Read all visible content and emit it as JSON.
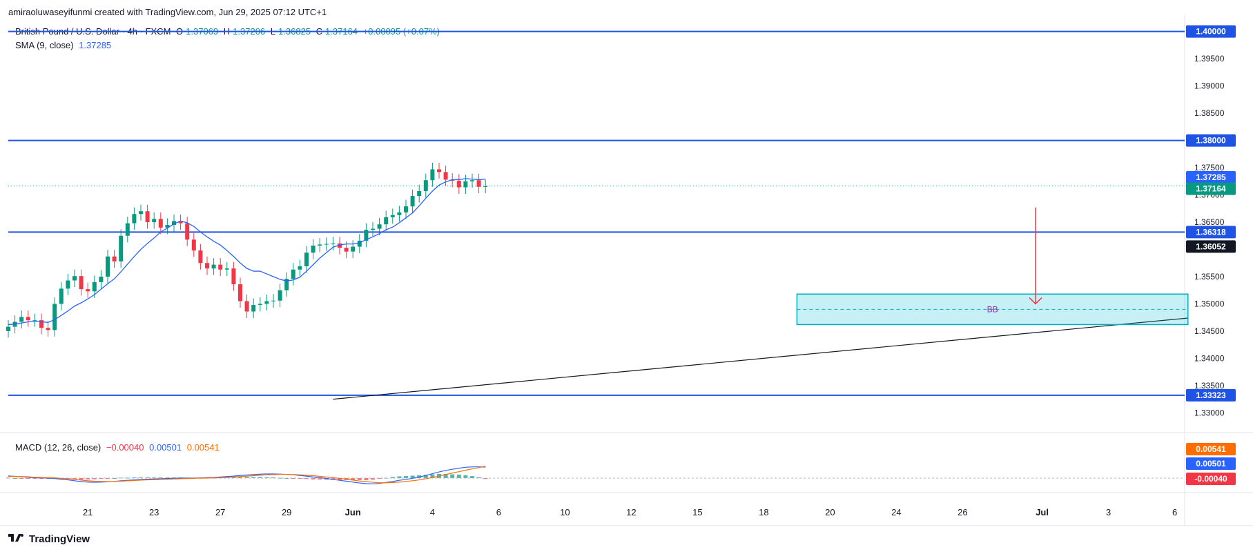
{
  "header": {
    "created_by": "amiraoluwaseyifunmi created with TradingView.com, Jun 29, 2025 07:12 UTC+1"
  },
  "legend": {
    "symbol": "British Pound / U.S. Dollar · 4h · FXCM",
    "open_label": "O",
    "open": "1.37069",
    "high_label": "H",
    "high": "1.37206",
    "low_label": "L",
    "low": "1.36825",
    "close_label": "C",
    "close": "1.37164",
    "change": "+0.00095 (+0.07%)",
    "sma_label": "SMA (9, close)",
    "sma_value": "1.37285",
    "macd_label": "MACD (12, 26, close)",
    "macd_hist": "−0.00040",
    "macd_line": "0.00501",
    "macd_signal": "0.00541"
  },
  "footer": {
    "brand": "TradingView"
  },
  "colors": {
    "up": "#089981",
    "down": "#f23645",
    "sma": "#2962ff",
    "level": "#1e53e5",
    "macd_line": "#2962ff",
    "signal": "#ff6d00"
  },
  "chart_data": {
    "type": "candlestick",
    "title": "British Pound / U.S. Dollar · 4h · FXCM",
    "ylim": [
      1.3265,
      1.403
    ],
    "y_ticks": [
      "1.40000",
      "1.39500",
      "1.39000",
      "1.38500",
      "1.38000",
      "1.37500",
      "1.37000",
      "1.36500",
      "1.36000",
      "1.35500",
      "1.35000",
      "1.34500",
      "1.34000",
      "1.33500",
      "1.33000"
    ],
    "x_ticks": [
      "21",
      "23",
      "27",
      "29",
      "Jun",
      "4",
      "6",
      "10",
      "12",
      "15",
      "18",
      "20",
      "24",
      "26",
      "Jul",
      "3",
      "6"
    ],
    "x_tick_bars": [
      12,
      22,
      32,
      42,
      52,
      64,
      74,
      84,
      94,
      104,
      114,
      124,
      134,
      144,
      156,
      166,
      176
    ],
    "horizontal_levels": [
      1.4,
      1.38,
      1.36318,
      1.33323
    ],
    "price_labels": {
      "level_1": "1.40000",
      "level_2": "1.38000",
      "level_3": "1.36318",
      "level_4": "1.33323",
      "sma": "1.37285",
      "last": "1.37164",
      "crosshair": "1.36052"
    },
    "zone": {
      "from_bar": 119,
      "to_bar": 178,
      "low": 1.3462,
      "high": 1.3518,
      "mid": 1.349,
      "label": "BB"
    },
    "trendline": {
      "start_bar": 49,
      "start_price": 1.3325,
      "end_bar": 178,
      "end_price": 1.3474
    },
    "arrow": {
      "bar": 155,
      "from_price": 1.3677,
      "to_price": 1.35
    },
    "closes": [
      1.3458,
      1.3467,
      1.3476,
      1.347,
      1.347,
      1.3456,
      1.3452,
      1.35,
      1.3528,
      1.3543,
      1.3551,
      1.3527,
      1.3523,
      1.354,
      1.355,
      1.3587,
      1.3578,
      1.3625,
      1.3648,
      1.3665,
      1.367,
      1.365,
      1.3656,
      1.364,
      1.3645,
      1.3652,
      1.3648,
      1.3618,
      1.3598,
      1.3575,
      1.3565,
      1.3572,
      1.3563,
      1.3565,
      1.3536,
      1.3505,
      1.3486,
      1.3498,
      1.35,
      1.3505,
      1.3506,
      1.3525,
      1.3546,
      1.3563,
      1.3569,
      1.3594,
      1.3607,
      1.3609,
      1.361,
      1.3611,
      1.3603,
      1.3596,
      1.3605,
      1.3616,
      1.3636,
      1.3638,
      1.3646,
      1.3659,
      1.3663,
      1.3668,
      1.3679,
      1.3698,
      1.3707,
      1.3727,
      1.3747,
      1.3742,
      1.3728,
      1.3726,
      1.3714,
      1.3725,
      1.3727,
      1.3715,
      1.3716
    ],
    "sma_values": [
      1.3462,
      1.3463,
      1.3465,
      1.3467,
      1.3468,
      1.3467,
      1.3466,
      1.3471,
      1.3479,
      1.3487,
      1.3496,
      1.3502,
      1.3509,
      1.3517,
      1.3527,
      1.3537,
      1.3546,
      1.3559,
      1.3573,
      1.3587,
      1.36,
      1.3611,
      1.3621,
      1.3632,
      1.3639,
      1.3647,
      1.3652,
      1.3649,
      1.3642,
      1.3632,
      1.3623,
      1.3615,
      1.3608,
      1.3598,
      1.3587,
      1.3575,
      1.3565,
      1.356,
      1.356,
      1.3555,
      1.355,
      1.3545,
      1.3542,
      1.3544,
      1.3549,
      1.356,
      1.3572,
      1.3584,
      1.3594,
      1.3604,
      1.3608,
      1.361,
      1.361,
      1.3612,
      1.3618,
      1.3623,
      1.3629,
      1.3636,
      1.3641,
      1.3649,
      1.3658,
      1.3667,
      1.368,
      1.3694,
      1.3707,
      1.3718,
      1.3724,
      1.3728,
      1.3728,
      1.373,
      1.3729,
      1.3728,
      1.3729
    ],
    "macd_values": [
      0.001,
      0.0008,
      0.0006,
      0.0004,
      0.0002,
      0.0001,
      0.0,
      -0.0002,
      -0.0005,
      -0.0008,
      -0.0012,
      -0.0016,
      -0.0018,
      -0.0019,
      -0.0018,
      -0.0017,
      -0.0015,
      -0.0012,
      -0.001,
      -0.0008,
      -0.0006,
      -0.0005,
      -0.0004,
      -0.0003,
      -0.0002,
      -0.0001,
      0.0,
      0.0,
      0.0,
      0.0001,
      0.0002,
      0.0003,
      0.0005,
      0.0007,
      0.0009,
      0.0012,
      0.0014,
      0.0016,
      0.0018,
      0.0019,
      0.0019,
      0.0018,
      0.0017,
      0.0015,
      0.0012,
      0.0009,
      0.0005,
      0.0002,
      -0.0002,
      -0.0006,
      -0.001,
      -0.0014,
      -0.0018,
      -0.0022,
      -0.0025,
      -0.0026,
      -0.0024,
      -0.002,
      -0.0015,
      -0.001,
      -0.0006,
      -0.0001,
      0.0005,
      0.0012,
      0.002,
      0.0028,
      0.0035,
      0.004,
      0.0045,
      0.0049,
      0.0051,
      0.0051,
      0.005
    ],
    "signal_values": [
      0.0008,
      0.0008,
      0.0007,
      0.0006,
      0.0004,
      0.0003,
      0.0002,
      0.0001,
      -0.0001,
      -0.0003,
      -0.0006,
      -0.0009,
      -0.0012,
      -0.0014,
      -0.0015,
      -0.0016,
      -0.0015,
      -0.0014,
      -0.0012,
      -0.0011,
      -0.0009,
      -0.0008,
      -0.0007,
      -0.0006,
      -0.0005,
      -0.0004,
      -0.0003,
      -0.0002,
      -0.0001,
      0.0,
      0.0,
      0.0001,
      0.0002,
      0.0004,
      0.0005,
      0.0007,
      0.0009,
      0.0011,
      0.0013,
      0.0015,
      0.0016,
      0.0017,
      0.0017,
      0.0016,
      0.0015,
      0.0013,
      0.0011,
      0.0008,
      0.0005,
      0.0002,
      -0.0001,
      -0.0005,
      -0.0009,
      -0.0013,
      -0.0016,
      -0.0019,
      -0.0021,
      -0.0021,
      -0.002,
      -0.0018,
      -0.0015,
      -0.0012,
      -0.0008,
      -0.0003,
      0.0003,
      0.0009,
      0.0016,
      0.0023,
      0.0029,
      0.0036,
      0.0042,
      0.0047,
      0.0054
    ],
    "macd_price_labels": {
      "signal": "0.00541",
      "macd": "0.00501",
      "hist": "-0.00040"
    }
  }
}
